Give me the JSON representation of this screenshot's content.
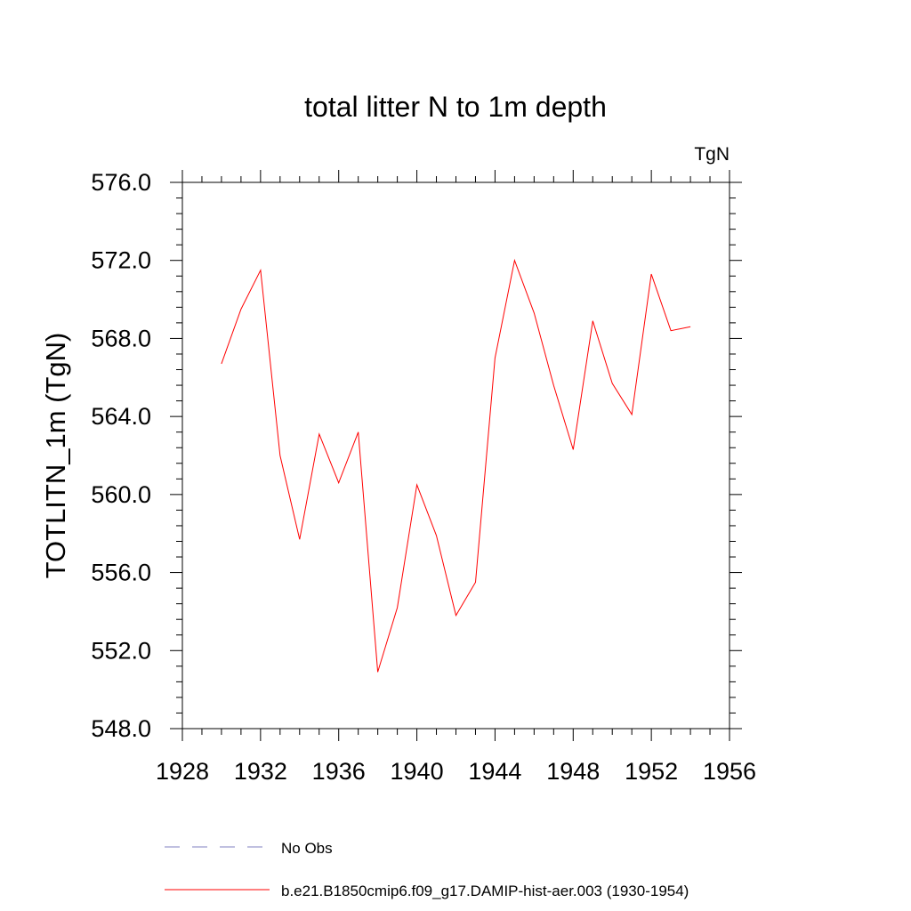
{
  "chart_data": {
    "type": "line",
    "title": "total litter N to 1m depth",
    "units_label": "TgN",
    "ylabel": "TOTLITN_1m  (TgN)",
    "xlabel": "",
    "xlim": [
      1928,
      1956
    ],
    "ylim": [
      548,
      576
    ],
    "x_ticks": [
      1928,
      1932,
      1936,
      1940,
      1944,
      1948,
      1952,
      1956
    ],
    "x_tick_labels": [
      "1928",
      "1932",
      "1936",
      "1940",
      "1944",
      "1948",
      "1952",
      "1956"
    ],
    "y_ticks": [
      548,
      552,
      556,
      560,
      564,
      568,
      572,
      576
    ],
    "y_tick_labels": [
      "548.0",
      "552.0",
      "556.0",
      "560.0",
      "564.0",
      "568.0",
      "572.0",
      "576.0"
    ],
    "grid": false,
    "legend_position": "bottom",
    "legend": [
      {
        "label": "No Obs",
        "color": "#8080c0",
        "style": "dashed"
      },
      {
        "label": "b.e21.B1850cmip6.f09_g17.DAMIP-hist-aer.003 (1930-1954)",
        "color": "#ff0000",
        "style": "solid"
      }
    ],
    "series": [
      {
        "name": "b.e21.B1850cmip6.f09_g17.DAMIP-hist-aer.003 (1930-1954)",
        "color": "#ff0000",
        "x": [
          1930,
          1931,
          1932,
          1933,
          1934,
          1935,
          1936,
          1937,
          1938,
          1939,
          1940,
          1941,
          1942,
          1943,
          1944,
          1945,
          1946,
          1947,
          1948,
          1949,
          1950,
          1951,
          1952,
          1953,
          1954
        ],
        "y": [
          566.7,
          569.5,
          571.5,
          562.0,
          557.7,
          563.1,
          560.6,
          563.2,
          550.9,
          554.2,
          560.5,
          557.9,
          553.8,
          555.5,
          567.0,
          572.0,
          569.3,
          565.6,
          562.3,
          568.9,
          565.7,
          564.1,
          571.3,
          568.4,
          568.6
        ]
      }
    ]
  }
}
